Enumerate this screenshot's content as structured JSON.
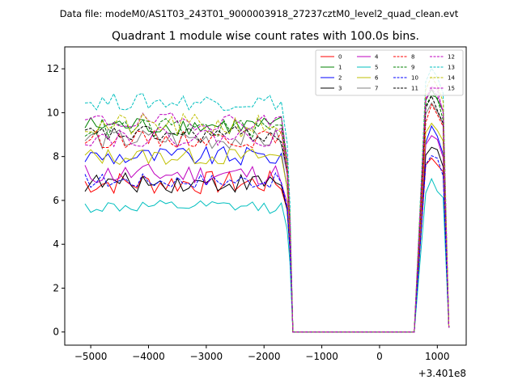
{
  "suptitle": "Data file: modeM0/AS1T03_243T01_9000003918_27237cztM0_level2_quad_clean.evt",
  "chart_data": {
    "type": "line",
    "title": "Quadrant 1 module wise count rates with 100.0s bins.",
    "xlabel": "",
    "ylabel": "",
    "offset_text": "+3.401e8",
    "xlim": [
      -5450,
      1500
    ],
    "ylim": [
      -0.6,
      13.0
    ],
    "xticks": [
      -5000,
      -4000,
      -3000,
      -2000,
      -1000,
      0,
      1000
    ],
    "xtick_labels": [
      "−5000",
      "−4000",
      "−3000",
      "−2000",
      "−1000",
      "0",
      "1000"
    ],
    "yticks": [
      0,
      2,
      4,
      6,
      8,
      10,
      12
    ],
    "ytick_labels": [
      "0",
      "2",
      "4",
      "6",
      "8",
      "10",
      "12"
    ],
    "legend_loc": "upper right",
    "series": [
      {
        "name": "0",
        "color": "#ff0000",
        "dash": "solid",
        "base": 6.8,
        "spread": 0.55,
        "post": 8.0
      },
      {
        "name": "1",
        "color": "#008000",
        "dash": "solid",
        "base": 9.4,
        "spread": 0.45,
        "post": 11.0
      },
      {
        "name": "2",
        "color": "#0000ff",
        "dash": "solid",
        "base": 8.0,
        "spread": 0.45,
        "post": 9.2
      },
      {
        "name": "3",
        "color": "#000000",
        "dash": "solid",
        "base": 6.8,
        "spread": 0.45,
        "post": 8.5
      },
      {
        "name": "4",
        "color": "#bf00bf",
        "dash": "solid",
        "base": 7.2,
        "spread": 0.5,
        "post": 8.9
      },
      {
        "name": "5",
        "color": "#00bfbf",
        "dash": "solid",
        "base": 5.7,
        "spread": 0.3,
        "post": 6.8
      },
      {
        "name": "6",
        "color": "#bfbf00",
        "dash": "solid",
        "base": 8.0,
        "spread": 0.4,
        "post": 9.6
      },
      {
        "name": "7",
        "color": "#808080",
        "dash": "solid",
        "base": 8.8,
        "spread": 0.5,
        "post": 10.4
      },
      {
        "name": "8",
        "color": "#ff0000",
        "dash": "dashed",
        "base": 8.8,
        "spread": 0.4,
        "post": 10.2
      },
      {
        "name": "9",
        "color": "#008000",
        "dash": "dashed",
        "base": 9.3,
        "spread": 0.45,
        "post": 10.9
      },
      {
        "name": "10",
        "color": "#0000ff",
        "dash": "dashed",
        "base": 6.9,
        "spread": 0.35,
        "post": 8.0
      },
      {
        "name": "11",
        "color": "#000000",
        "dash": "dashed",
        "base": 9.0,
        "spread": 0.4,
        "post": 10.6
      },
      {
        "name": "12",
        "color": "#bf00bf",
        "dash": "dashed",
        "base": 9.6,
        "spread": 0.4,
        "post": 11.2
      },
      {
        "name": "13",
        "color": "#00bfbf",
        "dash": "dashed",
        "base": 10.5,
        "spread": 0.4,
        "post": 12.0
      },
      {
        "name": "14",
        "color": "#bfbf00",
        "dash": "dashed",
        "base": 9.4,
        "spread": 0.55,
        "post": 11.5
      },
      {
        "name": "15",
        "color": "#bf00bf",
        "dash": "dashed",
        "base": 8.9,
        "spread": 0.45,
        "post": 11.3
      }
    ],
    "x_active_start": -5100,
    "x_drop_start": -1700,
    "x_zero_start": -1500,
    "x_zero_end": 600,
    "x_end": 1200,
    "bin": 100
  }
}
